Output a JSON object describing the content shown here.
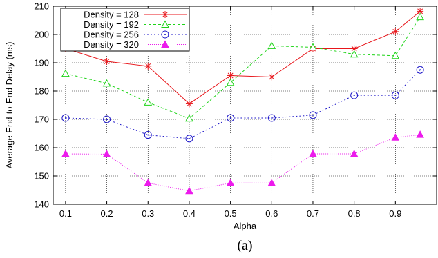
{
  "chart_data": {
    "type": "line",
    "xlabel": "Alpha",
    "ylabel": "Average End-to-End Delay (ms)",
    "caption": "(a)",
    "xlim": [
      0.07,
      1.0
    ],
    "ylim": [
      140,
      210
    ],
    "x_ticks": [
      0.1,
      0.2,
      0.3,
      0.4,
      0.5,
      0.6,
      0.7,
      0.8,
      0.9
    ],
    "y_ticks": [
      140,
      150,
      160,
      170,
      180,
      190,
      200,
      210
    ],
    "x": [
      0.1,
      0.2,
      0.3,
      0.4,
      0.5,
      0.6,
      0.7,
      0.8,
      0.9,
      0.96
    ],
    "grid": true,
    "legend_position": "top-left",
    "series": [
      {
        "name": "Density = 128",
        "color": "#e8161b",
        "marker": "star",
        "dash": "",
        "values": [
          195.0,
          190.5,
          188.8,
          175.5,
          185.5,
          185.0,
          195.0,
          195.0,
          201.0,
          208.2
        ]
      },
      {
        "name": "Density = 192",
        "color": "#1ed418",
        "marker": "triangle-open",
        "dash": "4,3",
        "values": [
          186.2,
          182.7,
          176.0,
          170.3,
          183.0,
          196.0,
          195.5,
          193.0,
          192.5,
          206.2
        ]
      },
      {
        "name": "Density = 256",
        "color": "#1d17c8",
        "marker": "circle-open",
        "dash": "2,3",
        "values": [
          170.5,
          170.0,
          164.5,
          163.2,
          170.5,
          170.5,
          171.5,
          178.5,
          178.5,
          187.5
        ]
      },
      {
        "name": "Density = 320",
        "color": "#ec1aec",
        "marker": "triangle-filled",
        "dash": "1,2",
        "values": [
          157.8,
          157.7,
          147.5,
          144.7,
          147.5,
          147.5,
          157.8,
          157.8,
          163.6,
          164.6
        ]
      }
    ]
  }
}
